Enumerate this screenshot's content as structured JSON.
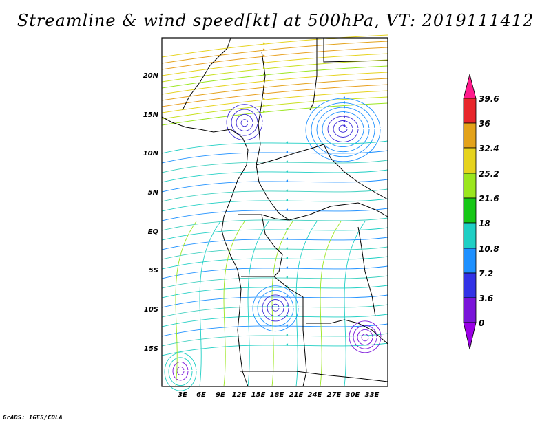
{
  "title": "Streamline & wind speed[kt] at 500hPa, VT: 2019111412",
  "credit": "GrADS: IGES/COLA",
  "map": {
    "lon_range": [
      0,
      36
    ],
    "lat_range": [
      -20,
      25
    ],
    "lon_ticks": [
      "3E",
      "6E",
      "9E",
      "12E",
      "15E",
      "18E",
      "21E",
      "24E",
      "27E",
      "30E",
      "33E"
    ],
    "lat_ticks": [
      "20N",
      "15N",
      "10N",
      "5N",
      "EQ",
      "5S",
      "10S",
      "15S"
    ]
  },
  "colorbar": {
    "labels": [
      "39.6",
      "36",
      "32.4",
      "25.2",
      "21.6",
      "18",
      "10.8",
      "7.2",
      "3.6",
      "0"
    ],
    "colors": [
      "#ff1a8c",
      "#e8262b",
      "#e3a21a",
      "#e6d31e",
      "#9be61e",
      "#16c716",
      "#1fcfc4",
      "#1e90ff",
      "#3232e6",
      "#7a14d9",
      "#9b00e6"
    ]
  },
  "legend_unit": "kt",
  "colors": {
    "vortex": "#3d2bd8",
    "border": "#000000"
  }
}
